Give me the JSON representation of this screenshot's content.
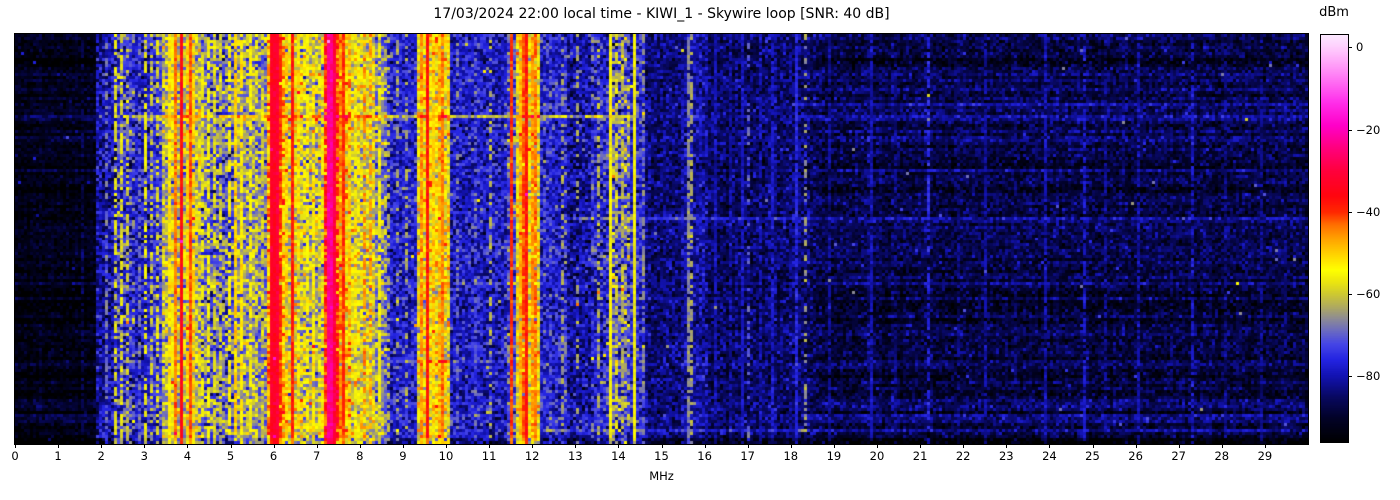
{
  "figure": {
    "background": "#ffffff",
    "frame_color": "#000000"
  },
  "chart_data": {
    "type": "heatmap",
    "title": "17/03/2024 22:00 local time - KIWI_1 - Skywire loop [SNR: 40 dB]",
    "xlabel": "MHz",
    "x_range_mhz": [
      0,
      30
    ],
    "x_ticks": [
      0,
      1,
      2,
      3,
      4,
      5,
      6,
      7,
      8,
      9,
      10,
      11,
      12,
      13,
      14,
      15,
      16,
      17,
      18,
      19,
      20,
      21,
      22,
      23,
      24,
      25,
      26,
      27,
      28,
      29
    ],
    "x_tick_labels": [
      "0",
      "1",
      "2",
      "3",
      "4",
      "5",
      "6",
      "7",
      "8",
      "9",
      "10",
      "11",
      "12",
      "13",
      "14",
      "15",
      "16",
      "17",
      "18",
      "19",
      "20",
      "21",
      "22",
      "23",
      "24",
      "25",
      "26",
      "27",
      "28",
      "29"
    ],
    "y_axis_ticks": [],
    "legend": "none",
    "grid": false,
    "colorbar": {
      "label": "dBm",
      "tick_values": [
        0,
        -20,
        -40,
        -60,
        -80
      ],
      "tick_labels": [
        "0",
        "−20",
        "−40",
        "−60",
        "−80"
      ],
      "value_range_dbm": [
        -96,
        3
      ]
    },
    "colormap_stops_dbm_rgb": [
      [
        -96,
        0,
        0,
        0
      ],
      [
        -90,
        2,
        2,
        40
      ],
      [
        -85,
        8,
        8,
        95
      ],
      [
        -80,
        18,
        18,
        175
      ],
      [
        -76,
        35,
        35,
        225
      ],
      [
        -72,
        70,
        70,
        230
      ],
      [
        -69,
        105,
        105,
        195
      ],
      [
        -66,
        140,
        138,
        150
      ],
      [
        -63,
        175,
        170,
        95
      ],
      [
        -60,
        205,
        200,
        50
      ],
      [
        -57,
        235,
        230,
        15
      ],
      [
        -54,
        255,
        255,
        0
      ],
      [
        -51,
        255,
        220,
        0
      ],
      [
        -47,
        255,
        170,
        0
      ],
      [
        -43,
        255,
        110,
        0
      ],
      [
        -40,
        255,
        40,
        0
      ],
      [
        -36,
        255,
        5,
        15
      ],
      [
        -30,
        255,
        0,
        60
      ],
      [
        -24,
        255,
        0,
        130
      ],
      [
        -19,
        255,
        0,
        200
      ],
      [
        -13,
        255,
        50,
        235
      ],
      [
        -7,
        255,
        125,
        245
      ],
      [
        -1,
        255,
        195,
        252
      ],
      [
        3,
        252,
        233,
        255
      ]
    ],
    "noise_floor_bands_mhz_dbm": [
      [
        0,
        1.85,
        -93,
        2.5
      ],
      [
        1.85,
        2.28,
        -81,
        5
      ],
      [
        2.28,
        2.75,
        -75,
        7
      ],
      [
        2.75,
        3.12,
        -78,
        5
      ],
      [
        3.12,
        3.42,
        -74,
        5
      ],
      [
        3.42,
        4.3,
        -62,
        6
      ],
      [
        4.3,
        5.05,
        -70,
        7
      ],
      [
        5.05,
        5.6,
        -64,
        6
      ],
      [
        5.6,
        5.85,
        -67,
        6
      ],
      [
        5.85,
        6.25,
        -48,
        6
      ],
      [
        6.25,
        6.65,
        -58,
        7
      ],
      [
        6.65,
        7.2,
        -62,
        7
      ],
      [
        7.2,
        7.5,
        -40,
        6
      ],
      [
        7.5,
        7.8,
        -52,
        6
      ],
      [
        7.8,
        8.35,
        -59,
        6
      ],
      [
        8.35,
        8.6,
        -66,
        6
      ],
      [
        8.6,
        9.35,
        -77,
        5
      ],
      [
        9.35,
        10.1,
        -55,
        6
      ],
      [
        10.1,
        11.45,
        -78,
        5
      ],
      [
        11.45,
        11.65,
        -72,
        6
      ],
      [
        11.65,
        12.2,
        -55,
        6
      ],
      [
        12.2,
        12.8,
        -77,
        5
      ],
      [
        12.8,
        13.35,
        -81,
        5
      ],
      [
        13.35,
        13.82,
        -76,
        6
      ],
      [
        13.82,
        14.28,
        -70,
        8
      ],
      [
        14.28,
        14.6,
        -76,
        5
      ],
      [
        14.6,
        15.45,
        -84,
        4
      ],
      [
        15.45,
        16.05,
        -82,
        4
      ],
      [
        16.05,
        18.6,
        -85,
        4
      ],
      [
        18.6,
        30.01,
        -88,
        3.5
      ]
    ],
    "carriers_mhz_dbm_duty": [
      [
        1.6,
        -86,
        0.5
      ],
      [
        2.1,
        -68,
        0.5
      ],
      [
        2.32,
        -58,
        0.6
      ],
      [
        2.5,
        -58,
        0.6
      ],
      [
        2.62,
        -60,
        0.5
      ],
      [
        2.9,
        -68,
        0.5
      ],
      [
        3.0,
        -57,
        0.6
      ],
      [
        3.2,
        -60,
        0.45
      ],
      [
        3.3,
        -58,
        0.5
      ],
      [
        3.55,
        -52,
        0.8
      ],
      [
        3.65,
        -55,
        0.6
      ],
      [
        3.75,
        -44,
        1
      ],
      [
        3.85,
        -36,
        1
      ],
      [
        3.97,
        -50,
        0.7
      ],
      [
        4.07,
        -42,
        1
      ],
      [
        4.17,
        -50,
        0.6
      ],
      [
        4.35,
        -57,
        0.6
      ],
      [
        4.5,
        -55,
        0.7
      ],
      [
        4.65,
        -58,
        0.6
      ],
      [
        4.8,
        -60,
        0.5
      ],
      [
        5.0,
        -54,
        0.7
      ],
      [
        5.1,
        -50,
        0.9
      ],
      [
        5.25,
        -52,
        0.7
      ],
      [
        5.45,
        -55,
        0.6
      ],
      [
        5.6,
        -58,
        0.5
      ],
      [
        5.75,
        -60,
        0.5
      ],
      [
        5.95,
        -33,
        1,
        2
      ],
      [
        6.07,
        -31,
        1,
        2
      ],
      [
        6.17,
        -40,
        0.9
      ],
      [
        6.3,
        -50,
        0.7
      ],
      [
        6.45,
        -38,
        1
      ],
      [
        6.57,
        -52,
        0.6
      ],
      [
        6.7,
        -56,
        0.5
      ],
      [
        6.8,
        -54,
        0.6
      ],
      [
        6.95,
        -53,
        0.7
      ],
      [
        7.1,
        -55,
        0.5
      ],
      [
        7.3,
        -23,
        1,
        3
      ],
      [
        7.42,
        -30,
        1
      ],
      [
        7.55,
        -45,
        0.8
      ],
      [
        7.65,
        -40,
        1
      ],
      [
        7.78,
        -50,
        0.6
      ],
      [
        7.9,
        -55,
        0.6
      ],
      [
        8.0,
        -56,
        0.5
      ],
      [
        8.1,
        -45,
        0.55
      ],
      [
        8.22,
        -46,
        0.5
      ],
      [
        8.45,
        -56,
        0.7
      ],
      [
        8.7,
        -62,
        0.35
      ],
      [
        8.9,
        -64,
        0.25
      ],
      [
        9.1,
        -63,
        0.3
      ],
      [
        9.45,
        -45,
        0.85
      ],
      [
        9.58,
        -38,
        1
      ],
      [
        9.7,
        -50,
        0.7
      ],
      [
        9.82,
        -48,
        0.7
      ],
      [
        9.95,
        -44,
        0.9
      ],
      [
        10.3,
        -68,
        0.3
      ],
      [
        10.65,
        -70,
        0.25
      ],
      [
        11.0,
        -62,
        0.4
      ],
      [
        11.55,
        -40,
        1
      ],
      [
        11.7,
        -48,
        0.8
      ],
      [
        11.8,
        -42,
        0.9
      ],
      [
        11.9,
        -38,
        1
      ],
      [
        12.0,
        -46,
        0.8
      ],
      [
        12.1,
        -44,
        0.85
      ],
      [
        12.7,
        -64,
        0.35
      ],
      [
        13.05,
        -64,
        0.3
      ],
      [
        13.55,
        -62,
        0.4
      ],
      [
        13.8,
        -55,
        1
      ],
      [
        13.95,
        -60,
        0.5
      ],
      [
        14.1,
        -62,
        0.5
      ],
      [
        14.4,
        -56,
        1
      ],
      [
        14.55,
        -66,
        0.5
      ],
      [
        15.65,
        -66,
        0.8
      ],
      [
        15.73,
        -63,
        0.5
      ],
      [
        16.25,
        -80,
        0.9
      ],
      [
        16.6,
        -81,
        0.7
      ],
      [
        16.9,
        -79,
        0.8
      ],
      [
        17.05,
        -70,
        0.4
      ],
      [
        17.3,
        -80,
        0.6
      ],
      [
        17.55,
        -78,
        0.8
      ],
      [
        18.1,
        -76,
        0.9
      ],
      [
        18.35,
        -64,
        0.35
      ],
      [
        18.9,
        -82,
        0.8
      ],
      [
        19.9,
        -80,
        0.9
      ],
      [
        20.4,
        -83,
        0.7
      ],
      [
        21.2,
        -76,
        0.6
      ],
      [
        21.9,
        -83,
        0.6
      ],
      [
        22.5,
        -81,
        0.8
      ],
      [
        23.2,
        -84,
        0.5
      ],
      [
        23.9,
        -80,
        0.8
      ],
      [
        24.8,
        -78,
        0.7
      ],
      [
        25.3,
        -82,
        0.6
      ],
      [
        26.1,
        -80,
        0.7
      ],
      [
        26.8,
        -84,
        0.5
      ],
      [
        27.3,
        -78,
        0.55
      ],
      [
        28.1,
        -83,
        0.5
      ],
      [
        28.9,
        -82,
        0.6
      ],
      [
        29.5,
        -84,
        0.5
      ]
    ],
    "burst_rows_frac_mhz_boost": [
      [
        0.198,
        2.4,
        14.4,
        13
      ],
      [
        0.202,
        2.4,
        9.2,
        5
      ],
      [
        0.168,
        18.0,
        30,
        5
      ],
      [
        0.444,
        12.6,
        30,
        9
      ],
      [
        0.449,
        18.0,
        30,
        4
      ],
      [
        0.795,
        8.5,
        12.3,
        5
      ],
      [
        0.96,
        12.0,
        30,
        6
      ]
    ]
  }
}
